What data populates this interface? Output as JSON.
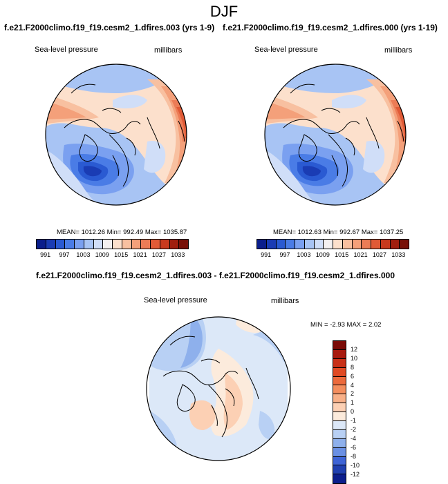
{
  "title": "DJF",
  "cases": {
    "left_title": "f.e21.F2000climo.f19_f19.cesm2_1.dfires.003 (yrs 1-9)",
    "right_title": "f.e21.F2000climo.f19_f19.cesm2_1.dfires.000 (yrs 1-19)",
    "diff_title": "f.e21.F2000climo.f19_f19.cesm2_1.dfires.003 - f.e21.F2000climo.f19_f19.cesm2_1.dfires.000"
  },
  "panels": {
    "left": {
      "variable": "Sea-level pressure",
      "units": "millibars",
      "stats": {
        "mean_label": "MEAN=",
        "mean": "1012.26",
        "min_label": "Min=",
        "min": "992.49",
        "max_label": "Max=",
        "max": "1035.87"
      }
    },
    "right": {
      "variable": "Sea-level pressure",
      "units": "millibars",
      "stats": {
        "mean_label": "MEAN=",
        "mean": "1012.63",
        "min_label": "Min=",
        "min": "992.67",
        "max_label": "Max=",
        "max": "1037.25"
      }
    },
    "diff": {
      "variable": "Sea-level pressure",
      "units": "millibars",
      "stats": {
        "min_label": "MIN =",
        "min": "-2.93",
        "max_label": "MAX =",
        "max": "2.02"
      }
    }
  },
  "colorbar_abs": {
    "colors": [
      "#0a1e8c",
      "#1a3cb4",
      "#2a5ad2",
      "#4a7ce6",
      "#7aa0f0",
      "#a8c4f4",
      "#d0def8",
      "#f4f0f0",
      "#fce0cc",
      "#f8c0a0",
      "#f4a07a",
      "#ec7c56",
      "#e05a36",
      "#c83a1e",
      "#a01e0e",
      "#781008"
    ],
    "ticks": [
      "991",
      "997",
      "1003",
      "1009",
      "1015",
      "1021",
      "1027",
      "1033"
    ]
  },
  "colorbar_diff": {
    "colors": [
      "#7a0a06",
      "#a81a0e",
      "#c83018",
      "#e04a24",
      "#ec6a3c",
      "#f48e5e",
      "#f8b088",
      "#fcd0b4",
      "#fcebdc",
      "#dce8f8",
      "#b8d0f4",
      "#8eb0ec",
      "#6a90e4",
      "#3e64d6",
      "#2040b0",
      "#0c1e8c"
    ],
    "ticks": [
      "12",
      "10",
      "8",
      "6",
      "4",
      "2",
      "1",
      "0",
      "-1",
      "-2",
      "-4",
      "-6",
      "-8",
      "-10",
      "-12"
    ]
  }
}
